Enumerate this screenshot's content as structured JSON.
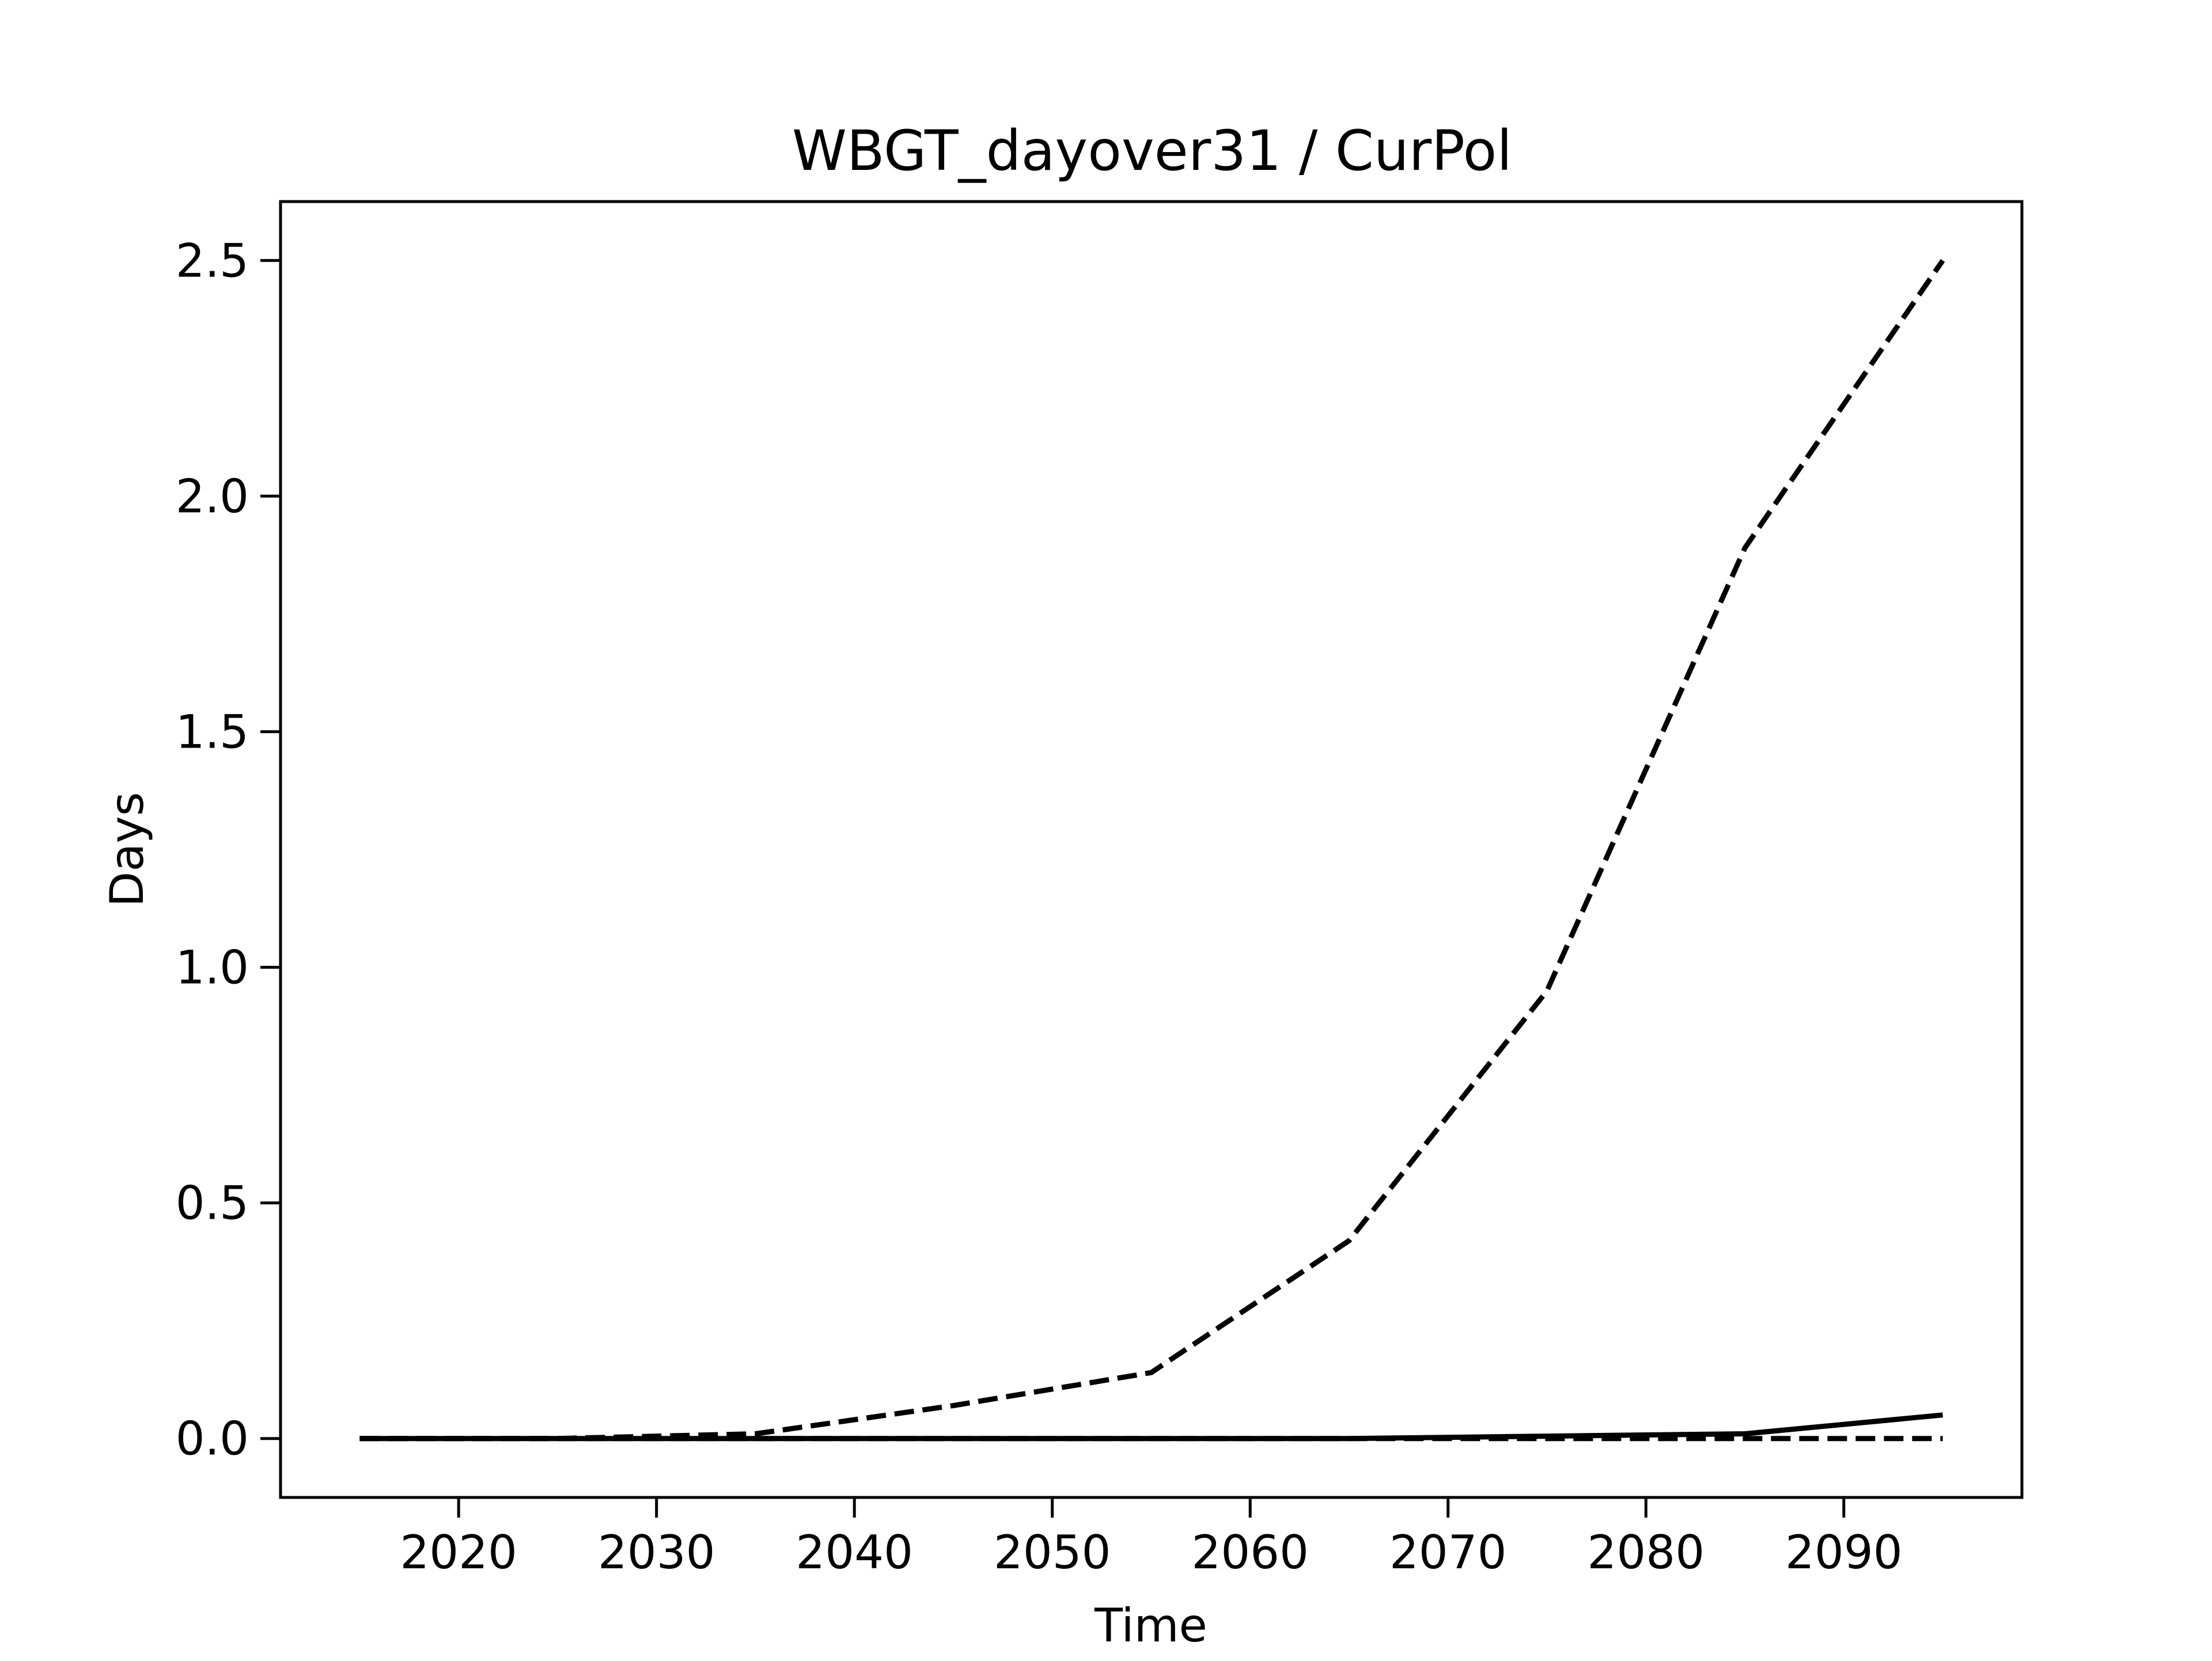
{
  "chart_data": {
    "type": "line",
    "title": "WBGT_dayover31 / CurPol",
    "xlabel": "Time",
    "ylabel": "Days",
    "xlim": [
      2011,
      2099
    ],
    "ylim": [
      -0.125,
      2.625
    ],
    "xticks": [
      2020,
      2030,
      2040,
      2050,
      2060,
      2070,
      2080,
      2090
    ],
    "yticks": [
      0.0,
      0.5,
      1.0,
      1.5,
      2.0,
      2.5
    ],
    "ytick_labels": [
      "0.0",
      "0.5",
      "1.0",
      "1.5",
      "2.0",
      "2.5"
    ],
    "grid": false,
    "legend": "none",
    "x": [
      2015,
      2025,
      2035,
      2045,
      2055,
      2065,
      2075,
      2085,
      2095
    ],
    "series": [
      {
        "style": "dashed",
        "color": "#000000",
        "values": [
          0.0,
          0.0,
          0.01,
          0.07,
          0.14,
          0.42,
          0.95,
          1.89,
          2.5
        ]
      },
      {
        "style": "solid",
        "color": "#000000",
        "values": [
          0.0,
          0.0,
          0.0,
          0.0,
          0.0,
          0.0,
          0.005,
          0.01,
          0.05
        ]
      },
      {
        "style": "dashed",
        "color": "#000000",
        "values": [
          0.0,
          0.0,
          0.0,
          0.0,
          0.0,
          0.0,
          0.0,
          0.0,
          0.0
        ]
      }
    ]
  }
}
